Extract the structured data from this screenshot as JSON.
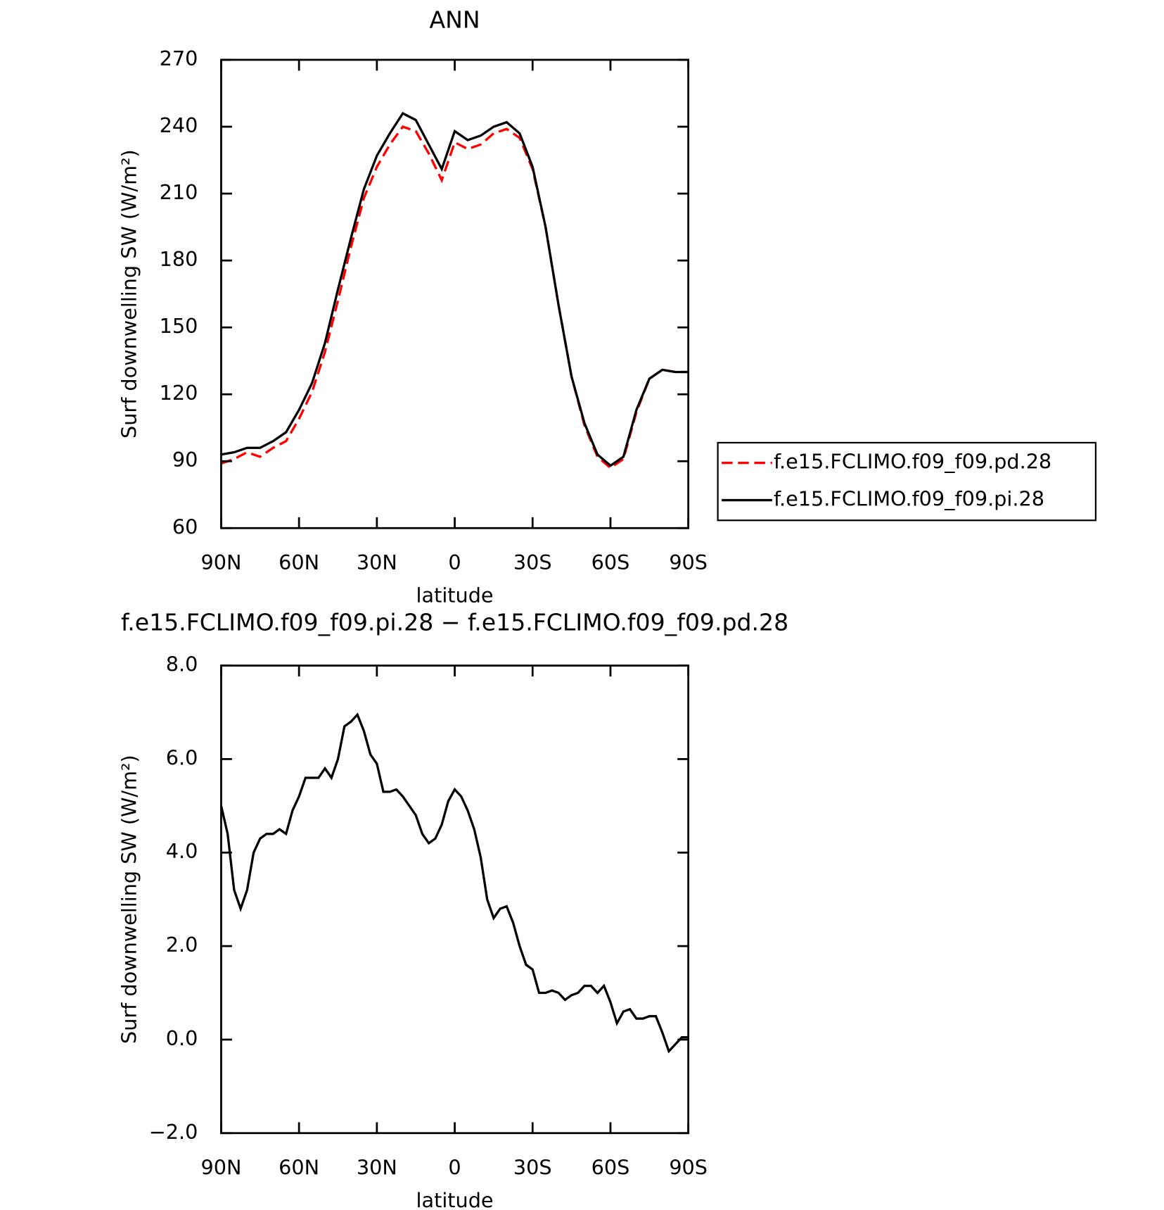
{
  "chart_data": [
    {
      "type": "line",
      "title": "ANN",
      "xlabel": "latitude",
      "ylabel": "Surf downwelling SW (W/m²)",
      "x": [
        90,
        85,
        80,
        75,
        70,
        65,
        60,
        55,
        50,
        45,
        40,
        35,
        30,
        25,
        20,
        15,
        10,
        5,
        0,
        -5,
        -10,
        -15,
        -20,
        -25,
        -30,
        -35,
        -40,
        -45,
        -50,
        -55,
        -60,
        -65,
        -70,
        -75,
        -80,
        -85,
        -90
      ],
      "series": [
        {
          "name": "f.e15.FCLIMO.f09_f09.pd.28",
          "color": "#ff0000",
          "dash": "dashed",
          "values": [
            89,
            91,
            94,
            92,
            96,
            99,
            109,
            121,
            139,
            162,
            186,
            208,
            222,
            232,
            240,
            238,
            228,
            216,
            233,
            230,
            232,
            237,
            239,
            235,
            221,
            195,
            160,
            128,
            106,
            92,
            87,
            91,
            112,
            127,
            131,
            130,
            130
          ]
        },
        {
          "name": "f.e15.FCLIMO.f09_f09.pi.28",
          "color": "#000000",
          "dash": "solid",
          "values": [
            93,
            94,
            96,
            96,
            99,
            103,
            113,
            125,
            143,
            167,
            190,
            212,
            227,
            237,
            246,
            243,
            232,
            221,
            238,
            234,
            236,
            240,
            242,
            237,
            222,
            195,
            160,
            128,
            107,
            93,
            88,
            92,
            113,
            127,
            131,
            130,
            130
          ]
        }
      ],
      "xlim": [
        90,
        -90
      ],
      "xticks": [
        {
          "value": 90,
          "label": "90N"
        },
        {
          "value": 60,
          "label": "60N"
        },
        {
          "value": 30,
          "label": "30N"
        },
        0,
        {
          "value": -30,
          "label": "30S"
        },
        {
          "value": -60,
          "label": "60S"
        },
        {
          "value": -90,
          "label": "90S"
        }
      ],
      "ylim": [
        60,
        270
      ],
      "yticks": [
        60,
        90,
        120,
        150,
        180,
        210,
        240,
        270
      ],
      "legend": "right"
    },
    {
      "type": "line",
      "title": "f.e15.FCLIMO.f09_f09.pi.28 − f.e15.FCLIMO.f09_f09.pd.28",
      "xlabel": "latitude",
      "ylabel": "Surf downwelling SW (W/m²)",
      "x": [
        90,
        87.5,
        85,
        82.5,
        80,
        77.5,
        75,
        72.5,
        70,
        67.5,
        65,
        62.5,
        60,
        57.5,
        55,
        52.5,
        50,
        47.5,
        45,
        42.5,
        40,
        37.5,
        35,
        32.5,
        30,
        27.5,
        25,
        22.5,
        20,
        17.5,
        15,
        12.5,
        10,
        7.5,
        5,
        2.5,
        0,
        -2.5,
        -5,
        -7.5,
        -10,
        -12.5,
        -15,
        -17.5,
        -20,
        -22.5,
        -25,
        -27.5,
        -30,
        -32.5,
        -35,
        -37.5,
        -40,
        -42.5,
        -45,
        -47.5,
        -50,
        -52.5,
        -55,
        -57.5,
        -60,
        -62.5,
        -65,
        -67.5,
        -70,
        -72.5,
        -75,
        -77.5,
        -80,
        -82.5,
        -85,
        -87.5,
        -90
      ],
      "series": [
        {
          "color": "#000000",
          "dash": "solid",
          "values": [
            5.0,
            4.4,
            3.2,
            2.8,
            3.2,
            4.0,
            4.3,
            4.4,
            4.4,
            4.5,
            4.4,
            4.9,
            5.2,
            5.6,
            5.6,
            5.6,
            5.8,
            5.6,
            6.0,
            6.7,
            6.8,
            6.95,
            6.6,
            6.1,
            5.9,
            5.3,
            5.3,
            5.35,
            5.2,
            5.0,
            4.8,
            4.4,
            4.2,
            4.3,
            4.6,
            5.1,
            5.35,
            5.2,
            4.9,
            4.5,
            3.9,
            3.0,
            2.6,
            2.8,
            2.85,
            2.5,
            2.0,
            1.6,
            1.5,
            1.0,
            1.0,
            1.05,
            1.0,
            0.85,
            0.95,
            1.0,
            1.15,
            1.15,
            1.0,
            1.15,
            0.8,
            0.35,
            0.6,
            0.65,
            0.45,
            0.45,
            0.5,
            0.5,
            0.15,
            -0.25,
            -0.1,
            0.05,
            0.05
          ]
        }
      ],
      "xlim": [
        90,
        -90
      ],
      "xticks": [
        {
          "value": 90,
          "label": "90N"
        },
        {
          "value": 60,
          "label": "60N"
        },
        {
          "value": 30,
          "label": "30N"
        },
        0,
        {
          "value": -30,
          "label": "30S"
        },
        {
          "value": -60,
          "label": "60S"
        },
        {
          "value": -90,
          "label": "90S"
        }
      ],
      "ylim": [
        -2,
        8
      ],
      "yticks": [
        {
          "value": -2,
          "label": "−2.0"
        },
        {
          "value": 0,
          "label": "0.0"
        },
        {
          "value": 2,
          "label": "2.0"
        },
        {
          "value": 4,
          "label": "4.0"
        },
        {
          "value": 6,
          "label": "6.0"
        },
        {
          "value": 8,
          "label": "8.0"
        }
      ]
    }
  ]
}
